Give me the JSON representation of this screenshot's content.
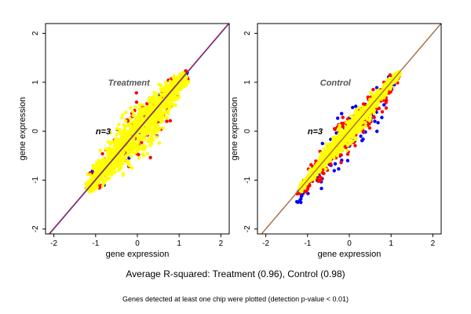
{
  "chart_data": [
    {
      "type": "scatter",
      "title": "Treatment",
      "annotation": "n=3",
      "xlabel": "gene expression",
      "ylabel": "gene expression",
      "xlim": [
        -2.2,
        2.2
      ],
      "ylim": [
        -2.1,
        2.2
      ],
      "xticks": [
        "-2",
        "-1",
        "0",
        "1",
        "2"
      ],
      "yticks": [
        "-2",
        "-1",
        "0",
        "1",
        "2"
      ],
      "reference_lines": [
        {
          "color": "#1f2fd0",
          "slope": 1.0,
          "intercept": 0.0
        },
        {
          "color": "#d03020",
          "slope": 1.0,
          "intercept": 0.02
        }
      ],
      "series": [
        {
          "color": "#0000ff",
          "cloud": {
            "center": [
              0.0,
              0.0
            ],
            "range": [
              -1.2,
              1.2
            ],
            "spread": 0.22,
            "count": 60
          }
        },
        {
          "color": "#ff0000",
          "cloud": {
            "center": [
              0.0,
              0.0
            ],
            "range": [
              -1.2,
              1.2
            ],
            "spread": 0.26,
            "count": 160
          }
        },
        {
          "color": "#ffff00",
          "cloud": {
            "center": [
              0.0,
              0.0
            ],
            "range": [
              -1.2,
              1.15
            ],
            "spread": 0.2,
            "count": 1400
          }
        }
      ],
      "grid": false
    },
    {
      "type": "scatter",
      "title": "Control",
      "annotation": "n=3",
      "xlabel": "gene expression",
      "ylabel": "gene expression",
      "xlim": [
        -2.2,
        2.2
      ],
      "ylim": [
        -2.1,
        2.2
      ],
      "xticks": [
        "-2",
        "-1",
        "0",
        "1",
        "2"
      ],
      "yticks": [
        "-2",
        "-1",
        "0",
        "1",
        "2"
      ],
      "reference_lines": [
        {
          "color": "#1f2fd0",
          "slope": 1.0,
          "intercept": 0.0
        },
        {
          "color": "#e08000",
          "slope": 1.0,
          "intercept": 0.01
        }
      ],
      "series": [
        {
          "color": "#0000ff",
          "cloud": {
            "center": [
              0.0,
              0.0
            ],
            "range": [
              -1.2,
              1.2
            ],
            "spread": 0.2,
            "count": 120,
            "skew": -0.25
          }
        },
        {
          "color": "#ff0000",
          "cloud": {
            "center": [
              0.0,
              0.0
            ],
            "range": [
              -1.2,
              1.2
            ],
            "spread": 0.16,
            "count": 260,
            "skew": -0.12
          }
        },
        {
          "color": "#ffff00",
          "cloud": {
            "center": [
              0.0,
              0.0
            ],
            "range": [
              -1.2,
              1.2
            ],
            "spread": 0.09,
            "count": 1300
          }
        }
      ],
      "grid": false
    }
  ],
  "footer": {
    "main": "Average R-squared: Treatment (0.96), Control (0.98)",
    "note": "Genes detected at least one chip were plotted (detection p-value < 0.01)"
  }
}
